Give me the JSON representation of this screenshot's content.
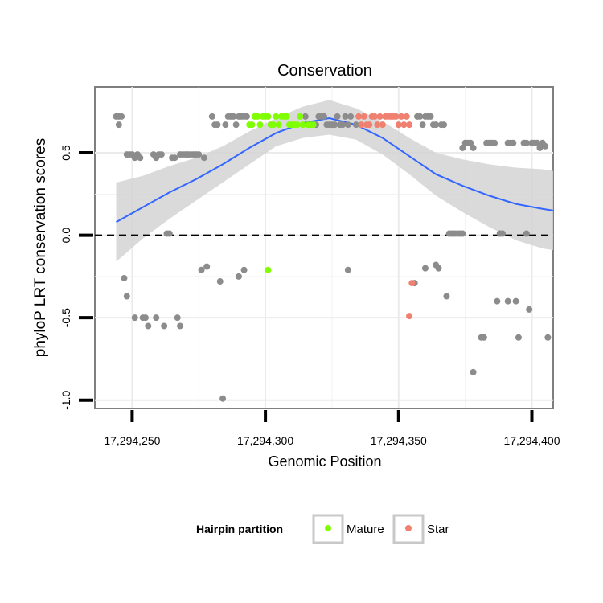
{
  "chart_data": {
    "type": "scatter",
    "title": "Conservation",
    "xlabel": "Genomic Position",
    "ylabel": "phyloP LRT conservation scores",
    "xlim": [
      17294236,
      17294408
    ],
    "ylim": [
      -1.05,
      0.9
    ],
    "x_ticks": [
      17294250,
      17294300,
      17294350,
      17294400
    ],
    "x_tick_labels": [
      "17,294,250",
      "17,294,300",
      "17,294,350",
      "17,294,400"
    ],
    "y_ticks": [
      -1.0,
      -0.5,
      0.0,
      0.5
    ],
    "y_tick_labels": [
      "-1.0",
      "-0.5",
      "0.0",
      "0.5"
    ],
    "reference_line": {
      "y": 0,
      "style": "dashed"
    },
    "legend": {
      "title": "Hairpin partition",
      "placement": "bottom",
      "entries": [
        {
          "label": "Mature",
          "color": "#7fff00"
        },
        {
          "label": "Star",
          "color": "#f08070"
        }
      ]
    },
    "colors": {
      "other": "#8c8c8c",
      "mature": "#7fff00",
      "star": "#f08070",
      "smooth": "#3366ff",
      "ribbon": "#d3d3d3"
    },
    "series": [
      {
        "name": "Other",
        "points": [
          [
            17294244,
            0.72
          ],
          [
            17294245,
            0.72
          ],
          [
            17294246,
            0.72
          ],
          [
            17294245,
            0.67
          ],
          [
            17294247,
            -0.26
          ],
          [
            17294248,
            -0.37
          ],
          [
            17294248,
            0.49
          ],
          [
            17294249,
            0.49
          ],
          [
            17294250,
            0.49
          ],
          [
            17294251,
            0.47
          ],
          [
            17294252,
            0.49
          ],
          [
            17294253,
            0.47
          ],
          [
            17294251,
            -0.5
          ],
          [
            17294254,
            -0.5
          ],
          [
            17294255,
            -0.5
          ],
          [
            17294256,
            -0.55
          ],
          [
            17294258,
            0.49
          ],
          [
            17294259,
            0.47
          ],
          [
            17294260,
            0.49
          ],
          [
            17294261,
            0.49
          ],
          [
            17294259,
            -0.5
          ],
          [
            17294262,
            -0.55
          ],
          [
            17294263,
            0.01
          ],
          [
            17294264,
            0.01
          ],
          [
            17294265,
            0.47
          ],
          [
            17294266,
            0.47
          ],
          [
            17294267,
            -0.5
          ],
          [
            17294268,
            -0.55
          ],
          [
            17294268,
            0.49
          ],
          [
            17294269,
            0.49
          ],
          [
            17294270,
            0.49
          ],
          [
            17294271,
            0.49
          ],
          [
            17294272,
            0.49
          ],
          [
            17294273,
            0.49
          ],
          [
            17294274,
            0.49
          ],
          [
            17294275,
            0.49
          ],
          [
            17294276,
            -0.21
          ],
          [
            17294277,
            0.47
          ],
          [
            17294278,
            -0.19
          ],
          [
            17294280,
            0.72
          ],
          [
            17294281,
            0.67
          ],
          [
            17294282,
            0.67
          ],
          [
            17294283,
            -0.28
          ],
          [
            17294284,
            -0.99
          ],
          [
            17294285,
            0.67
          ],
          [
            17294286,
            0.72
          ],
          [
            17294287,
            0.72
          ],
          [
            17294288,
            0.72
          ],
          [
            17294289,
            0.67
          ],
          [
            17294290,
            0.72
          ],
          [
            17294290,
            -0.25
          ],
          [
            17294291,
            0.72
          ],
          [
            17294292,
            0.72
          ],
          [
            17294293,
            0.72
          ],
          [
            17294292,
            -0.21
          ],
          [
            17294315,
            0.72
          ],
          [
            17294319,
            0.67
          ],
          [
            17294320,
            0.72
          ],
          [
            17294321,
            0.72
          ],
          [
            17294322,
            0.72
          ],
          [
            17294323,
            0.67
          ],
          [
            17294324,
            0.67
          ],
          [
            17294325,
            0.67
          ],
          [
            17294326,
            0.67
          ],
          [
            17294327,
            0.72
          ],
          [
            17294328,
            0.67
          ],
          [
            17294329,
            0.67
          ],
          [
            17294330,
            0.72
          ],
          [
            17294331,
            0.67
          ],
          [
            17294332,
            0.72
          ],
          [
            17294331,
            -0.21
          ],
          [
            17294334,
            0.67
          ],
          [
            17294356,
            -0.29
          ],
          [
            17294357,
            0.72
          ],
          [
            17294358,
            0.72
          ],
          [
            17294359,
            0.67
          ],
          [
            17294360,
            0.72
          ],
          [
            17294361,
            0.72
          ],
          [
            17294362,
            0.72
          ],
          [
            17294363,
            0.67
          ],
          [
            17294364,
            0.67
          ],
          [
            17294360,
            -0.2
          ],
          [
            17294364,
            -0.18
          ],
          [
            17294365,
            -0.2
          ],
          [
            17294366,
            0.67
          ],
          [
            17294367,
            0.67
          ],
          [
            17294368,
            -0.37
          ],
          [
            17294369,
            0.01
          ],
          [
            17294370,
            0.01
          ],
          [
            17294371,
            0.01
          ],
          [
            17294372,
            0.01
          ],
          [
            17294373,
            0.01
          ],
          [
            17294374,
            0.01
          ],
          [
            17294374,
            0.53
          ],
          [
            17294375,
            0.56
          ],
          [
            17294376,
            0.56
          ],
          [
            17294377,
            0.56
          ],
          [
            17294378,
            0.53
          ],
          [
            17294378,
            -0.83
          ],
          [
            17294381,
            -0.62
          ],
          [
            17294382,
            -0.62
          ],
          [
            17294383,
            0.56
          ],
          [
            17294384,
            0.56
          ],
          [
            17294385,
            0.56
          ],
          [
            17294386,
            0.56
          ],
          [
            17294387,
            -0.4
          ],
          [
            17294388,
            0.01
          ],
          [
            17294389,
            0.01
          ],
          [
            17294391,
            -0.4
          ],
          [
            17294391,
            0.56
          ],
          [
            17294392,
            0.56
          ],
          [
            17294393,
            0.56
          ],
          [
            17294394,
            -0.4
          ],
          [
            17294395,
            -0.62
          ],
          [
            17294397,
            0.56
          ],
          [
            17294398,
            0.56
          ],
          [
            17294398,
            0.01
          ],
          [
            17294399,
            -0.45
          ],
          [
            17294400,
            0.56
          ],
          [
            17294401,
            0.56
          ],
          [
            17294402,
            0.56
          ],
          [
            17294403,
            0.53
          ],
          [
            17294404,
            0.56
          ],
          [
            17294405,
            0.54
          ],
          [
            17294406,
            -0.62
          ]
        ]
      },
      {
        "name": "Mature",
        "points": [
          [
            17294294,
            0.67
          ],
          [
            17294295,
            0.67
          ],
          [
            17294296,
            0.72
          ],
          [
            17294297,
            0.72
          ],
          [
            17294298,
            0.67
          ],
          [
            17294299,
            0.72
          ],
          [
            17294300,
            0.72
          ],
          [
            17294301,
            0.72
          ],
          [
            17294301,
            -0.21
          ],
          [
            17294302,
            0.67
          ],
          [
            17294303,
            0.67
          ],
          [
            17294304,
            0.72
          ],
          [
            17294305,
            0.67
          ],
          [
            17294306,
            0.72
          ],
          [
            17294307,
            0.72
          ],
          [
            17294308,
            0.72
          ],
          [
            17294309,
            0.67
          ],
          [
            17294310,
            0.67
          ],
          [
            17294311,
            0.67
          ],
          [
            17294312,
            0.67
          ],
          [
            17294313,
            0.72
          ],
          [
            17294314,
            0.67
          ],
          [
            17294316,
            0.67
          ],
          [
            17294317,
            0.67
          ],
          [
            17294318,
            0.67
          ]
        ]
      },
      {
        "name": "Star",
        "points": [
          [
            17294335,
            0.72
          ],
          [
            17294336,
            0.67
          ],
          [
            17294337,
            0.72
          ],
          [
            17294338,
            0.67
          ],
          [
            17294339,
            0.67
          ],
          [
            17294340,
            0.72
          ],
          [
            17294341,
            0.72
          ],
          [
            17294342,
            0.67
          ],
          [
            17294343,
            0.72
          ],
          [
            17294344,
            0.67
          ],
          [
            17294345,
            0.72
          ],
          [
            17294346,
            0.72
          ],
          [
            17294347,
            0.72
          ],
          [
            17294348,
            0.72
          ],
          [
            17294349,
            0.72
          ],
          [
            17294350,
            0.67
          ],
          [
            17294351,
            0.72
          ],
          [
            17294352,
            0.67
          ],
          [
            17294353,
            0.72
          ],
          [
            17294354,
            0.67
          ],
          [
            17294354,
            -0.49
          ],
          [
            17294355,
            -0.29
          ]
        ]
      }
    ],
    "smooth": {
      "x": [
        17294244,
        17294254,
        17294264,
        17294274,
        17294284,
        17294294,
        17294304,
        17294314,
        17294324,
        17294334,
        17294344,
        17294354,
        17294364,
        17294374,
        17294384,
        17294394,
        17294404,
        17294408
      ],
      "y": [
        0.08,
        0.17,
        0.26,
        0.34,
        0.43,
        0.53,
        0.62,
        0.68,
        0.71,
        0.67,
        0.59,
        0.48,
        0.37,
        0.3,
        0.24,
        0.19,
        0.16,
        0.15
      ],
      "lower": [
        -0.16,
        -0.02,
        0.1,
        0.21,
        0.32,
        0.43,
        0.54,
        0.59,
        0.61,
        0.58,
        0.49,
        0.37,
        0.24,
        0.14,
        0.05,
        -0.03,
        -0.08,
        -0.09
      ],
      "upper": [
        0.32,
        0.36,
        0.42,
        0.47,
        0.54,
        0.63,
        0.71,
        0.78,
        0.82,
        0.77,
        0.69,
        0.59,
        0.5,
        0.46,
        0.43,
        0.41,
        0.4,
        0.39
      ]
    }
  }
}
